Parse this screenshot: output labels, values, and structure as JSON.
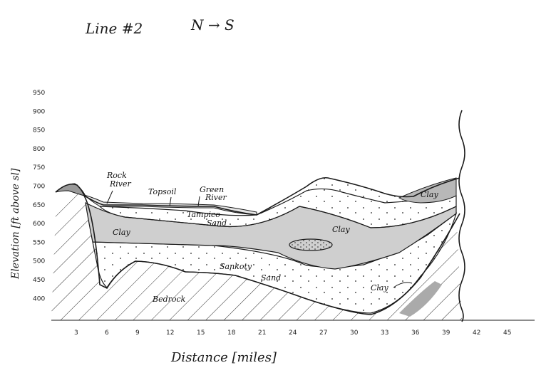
{
  "title": "Line #2",
  "direction": "N → S",
  "y_axis_label": "Elevation [ft above sl]",
  "x_axis_label": "Distance [miles]",
  "y_ticks": [
    "950",
    "900",
    "850",
    "800",
    "750",
    "700",
    "650",
    "600",
    "550",
    "500",
    "450",
    "400"
  ],
  "x_ticks": [
    "3",
    "6",
    "9",
    "12",
    "15",
    "18",
    "21",
    "24",
    "27",
    "30",
    "33",
    "36",
    "39",
    "42",
    "45"
  ],
  "layers": {
    "rock_river": "Rock River",
    "topsoil": "Topsoil",
    "green_river": "Green River",
    "tampico_sand": "Tampico Sand",
    "clay_left": "Clay",
    "clay_center": "Clay",
    "clay_top_right": "Clay",
    "sankoty_sand": "Sankoty Sand",
    "clay_bottom_right": "Clay",
    "bedrock": "Bedrock"
  },
  "colors": {
    "ink": "#1a1a1a",
    "clay_fill": "#c9c9c9",
    "paper": "#ffffff"
  }
}
